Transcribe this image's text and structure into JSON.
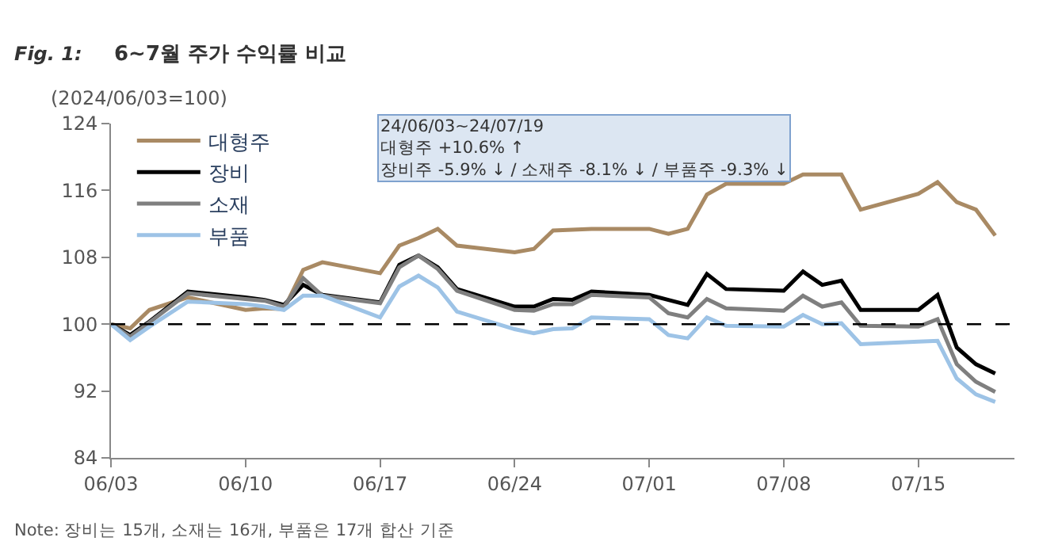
{
  "chart_data": {
    "type": "line",
    "title": "6~7월 주가 수익률 비교",
    "ylabel": "(2024/06/03=100)",
    "annotations": [
      "Fig. 1:",
      "24/06/03~24/07/19\n대형주 +10.6% ↑\n장비주 -5.9% ↓ / 소재주 -8.1% ↓ / 부품주 -9.3% ↓",
      "Note: 장비는 15개, 소재는 16개, 부품은 17개 합산 기준"
    ],
    "x": [
      "2024-06-03",
      "2024-06-04",
      "2024-06-05",
      "2024-06-07",
      "2024-06-10",
      "2024-06-11",
      "2024-06-12",
      "2024-06-13",
      "2024-06-14",
      "2024-06-17",
      "2024-06-18",
      "2024-06-19",
      "2024-06-20",
      "2024-06-21",
      "2024-06-24",
      "2024-06-25",
      "2024-06-26",
      "2024-06-27",
      "2024-06-28",
      "2024-07-01",
      "2024-07-02",
      "2024-07-03",
      "2024-07-04",
      "2024-07-05",
      "2024-07-08",
      "2024-07-09",
      "2024-07-10",
      "2024-07-11",
      "2024-07-12",
      "2024-07-15",
      "2024-07-16",
      "2024-07-17",
      "2024-07-18",
      "2024-07-19"
    ],
    "series": [
      {
        "name": "대형주",
        "color": "#a98a64",
        "values": [
          100,
          99.5,
          101.7,
          103.2,
          101.7,
          101.9,
          101.8,
          106.5,
          107.4,
          106.1,
          109.4,
          110.3,
          111.4,
          109.4,
          108.6,
          109,
          111.2,
          111.3,
          111.4,
          111.4,
          110.8,
          111.4,
          115.5,
          116.8,
          116.8,
          117.9,
          117.9,
          117.9,
          113.7,
          115.6,
          117,
          114.6,
          113.7,
          110.6
        ]
      },
      {
        "name": "장비",
        "color": "#000000",
        "values": [
          100,
          98.7,
          100.3,
          103.9,
          103.2,
          102.9,
          102.3,
          104.7,
          103.5,
          102.6,
          107.1,
          108.2,
          106.8,
          104.2,
          102.1,
          102.1,
          103,
          102.9,
          103.9,
          103.5,
          102.9,
          102.3,
          106,
          104.2,
          104,
          106.3,
          104.7,
          105.2,
          101.7,
          101.7,
          103.5,
          97.2,
          95.2,
          94.1
        ]
      },
      {
        "name": "소재",
        "color": "#7f7f7f",
        "values": [
          100,
          98.5,
          100.2,
          103.7,
          103,
          102.8,
          102.1,
          105.5,
          103.4,
          102.5,
          106.8,
          108.2,
          106.6,
          104,
          101.7,
          101.6,
          102.4,
          102.4,
          103.5,
          103.2,
          101.3,
          100.8,
          103,
          101.9,
          101.6,
          103.4,
          102.1,
          102.6,
          99.8,
          99.7,
          100.6,
          95.2,
          93.1,
          91.9
        ]
      },
      {
        "name": "부품",
        "color": "#9dc3e6",
        "values": [
          100,
          98.1,
          99.7,
          102.7,
          102.4,
          102.1,
          101.7,
          103.4,
          103.4,
          100.8,
          104.5,
          105.8,
          104.4,
          101.5,
          99.4,
          98.9,
          99.4,
          99.5,
          100.8,
          100.6,
          98.7,
          98.3,
          100.8,
          99.8,
          99.7,
          101.1,
          100,
          100.1,
          97.6,
          97.9,
          98,
          93.5,
          91.6,
          90.7
        ]
      }
    ],
    "xlim": [
      "2024-06-03",
      "2024-07-20"
    ],
    "xticks": [
      {
        "value": "2024-06-03",
        "label": "06/03"
      },
      {
        "value": "2024-06-10",
        "label": "06/10"
      },
      {
        "value": "2024-06-17",
        "label": "06/17"
      },
      {
        "value": "2024-06-24",
        "label": "06/24"
      },
      {
        "value": "2024-07-01",
        "label": "07/01"
      },
      {
        "value": "2024-07-08",
        "label": "07/08"
      },
      {
        "value": "2024-07-15",
        "label": "07/15"
      }
    ],
    "ylim": [
      84,
      124
    ],
    "yticks": [
      84,
      92,
      100,
      108,
      116,
      124
    ],
    "ref_lines": [
      {
        "axis": "y",
        "value": 100,
        "line_style": "dashed",
        "color": "#000000"
      }
    ],
    "legend": "top left",
    "marker": "none",
    "line_style": "solid"
  }
}
